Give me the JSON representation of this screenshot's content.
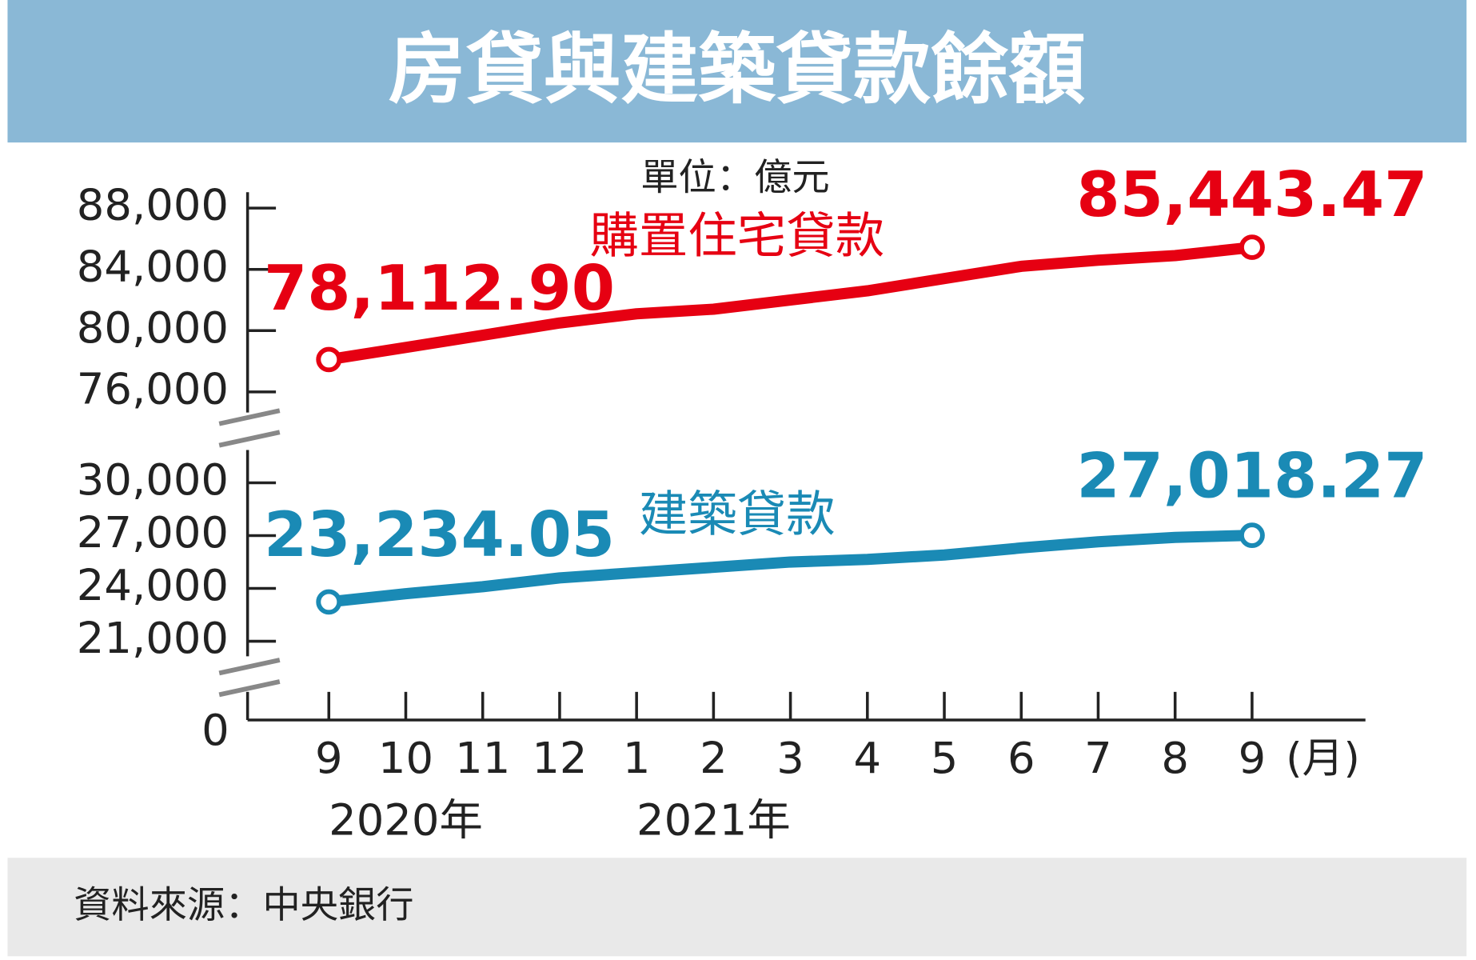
{
  "chart_data": {
    "type": "line",
    "title": "房貸與建築貸款餘額",
    "unit": "單位：億元",
    "source": "資料來源：中央銀行",
    "categories": [
      "9",
      "10",
      "11",
      "12",
      "1",
      "2",
      "3",
      "4",
      "5",
      "6",
      "7",
      "8",
      "9"
    ],
    "x_unit": "(月)",
    "year_labels": [
      "2020年",
      "2021年"
    ],
    "ylim": [
      76000,
      88000
    ],
    "yticks": [
      {
        "value": 76000,
        "label": "76,000"
      },
      {
        "value": 80000,
        "label": "80,000"
      },
      {
        "value": 84000,
        "label": "84,000"
      },
      {
        "value": 88000,
        "label": "88,000"
      }
    ],
    "y2lim": [
      21000,
      30000
    ],
    "y2ticks": [
      {
        "value": 21000,
        "label": "21,000"
      },
      {
        "value": 24000,
        "label": "24,000"
      },
      {
        "value": 27000,
        "label": "27,000"
      },
      {
        "value": 30000,
        "label": "30,000"
      }
    ],
    "axis_origin": 0,
    "series": [
      {
        "name": "購置住宅貸款",
        "color": "#e60012",
        "values": [
          78112.9,
          78900,
          79700,
          80500,
          81100,
          81400,
          82000,
          82600,
          83400,
          84200,
          84600,
          84900,
          85443.47
        ],
        "value_labels": [
          "78,112.90",
          null,
          null,
          null,
          null,
          null,
          null,
          null,
          null,
          null,
          null,
          null,
          "85,443.47"
        ]
      },
      {
        "name": "建築貸款",
        "color": "#1a8ab5",
        "axis": "y2",
        "values": [
          23234.05,
          23700,
          24100,
          24600,
          24900,
          25200,
          25500,
          25650,
          25900,
          26300,
          26650,
          26900,
          27018.27
        ],
        "value_labels": [
          "23,234.05",
          null,
          null,
          null,
          null,
          null,
          null,
          null,
          null,
          null,
          null,
          null,
          "27,018.27"
        ]
      }
    ]
  }
}
